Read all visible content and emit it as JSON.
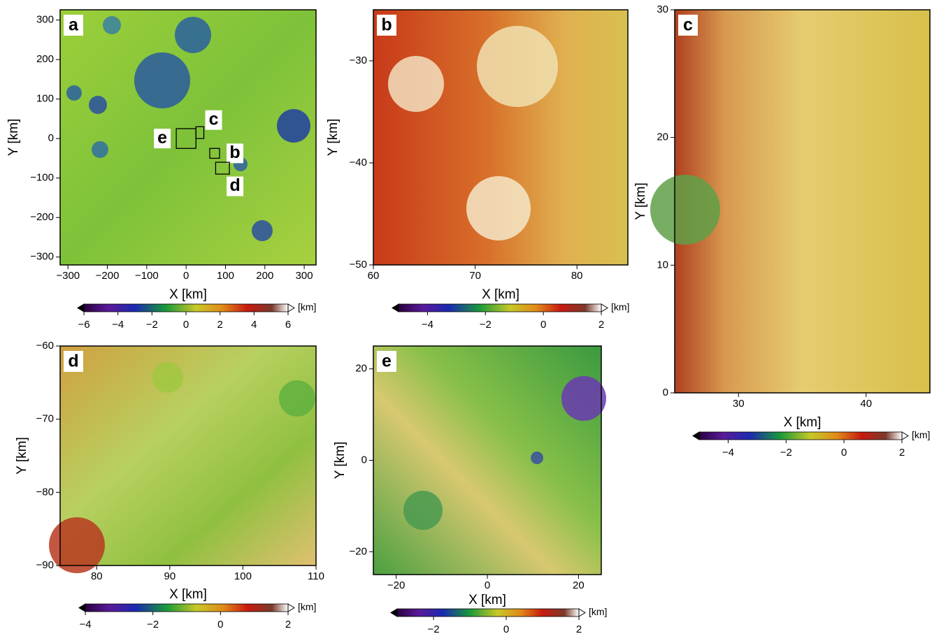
{
  "panels": [
    {
      "label": "a",
      "xlabel": "X [km]",
      "ylabel": "Y [km]",
      "xlim": [
        -320,
        330
      ],
      "ylim": [
        -320,
        326
      ],
      "xticks": [
        {
          "value": -300,
          "label": "−300"
        },
        {
          "value": -200,
          "label": "−200"
        },
        {
          "value": -100,
          "label": "−100"
        },
        0,
        100,
        200,
        300
      ],
      "yticks": [
        {
          "value": -300,
          "label": "−300"
        },
        {
          "value": -200,
          "label": "−200"
        },
        {
          "value": -100,
          "label": "−100"
        },
        0,
        100,
        200,
        300
      ],
      "colorbar": {
        "lim": [
          -6,
          6
        ],
        "ticks": [
          {
            "value": -6,
            "label": "−6"
          },
          {
            "value": -4,
            "label": "−4"
          },
          {
            "value": -2,
            "label": "−2"
          },
          0,
          2,
          4,
          6
        ],
        "unit": "[km]"
      }
    },
    {
      "label": "b",
      "xlabel": "X [km]",
      "ylabel": "Y [km]",
      "xlim": [
        60,
        85
      ],
      "ylim": [
        -50,
        -25
      ],
      "xticks": [
        60,
        70,
        80
      ],
      "yticks": [
        {
          "value": -30,
          "label": "−30"
        },
        {
          "value": -40,
          "label": "−40"
        },
        {
          "value": -50,
          "label": "−50"
        }
      ],
      "colorbar": {
        "lim": [
          -5,
          2
        ],
        "ticks": [
          {
            "value": -4,
            "label": "−4"
          },
          {
            "value": -2,
            "label": "−2"
          },
          0,
          2
        ],
        "unit": "[km]"
      }
    },
    {
      "label": "c",
      "xlabel": "X [km]",
      "ylabel": "Y [km]",
      "xlim": [
        25,
        45
      ],
      "ylim": [
        0,
        30
      ],
      "xticks": [
        30,
        40
      ],
      "yticks": [
        0,
        10,
        20,
        30
      ],
      "colorbar": {
        "lim": [
          -5,
          2
        ],
        "ticks": [
          {
            "value": -4,
            "label": "−4"
          },
          {
            "value": -2,
            "label": "−2"
          },
          0,
          2
        ],
        "unit": "[km]"
      }
    },
    {
      "label": "d",
      "xlabel": "X [km]",
      "ylabel": "Y [km]",
      "xlim": [
        75,
        110
      ],
      "ylim": [
        -90,
        -60
      ],
      "xticks": [
        80,
        90,
        100,
        110
      ],
      "yticks": [
        {
          "value": -60,
          "label": "−60"
        },
        {
          "value": -70,
          "label": "−70"
        },
        {
          "value": -80,
          "label": "−80"
        },
        {
          "value": -90,
          "label": "−90"
        }
      ],
      "colorbar": {
        "lim": [
          -4,
          2
        ],
        "ticks": [
          {
            "value": -4,
            "label": "−4"
          },
          {
            "value": -2,
            "label": "−2"
          },
          0,
          2
        ],
        "unit": "[km]"
      }
    },
    {
      "label": "e",
      "xlabel": "X [km]",
      "ylabel": "Y [km]",
      "xlim": [
        -25,
        25
      ],
      "ylim": [
        -25,
        25
      ],
      "xticks": [
        {
          "value": -20,
          "label": "−20"
        },
        0,
        20
      ],
      "yticks": [
        {
          "value": -20,
          "label": "−20"
        },
        0,
        20
      ],
      "colorbar": {
        "lim": [
          -3,
          2
        ],
        "ticks": [
          {
            "value": -2,
            "label": "−2"
          },
          0,
          2
        ],
        "unit": "[km]"
      }
    }
  ]
}
